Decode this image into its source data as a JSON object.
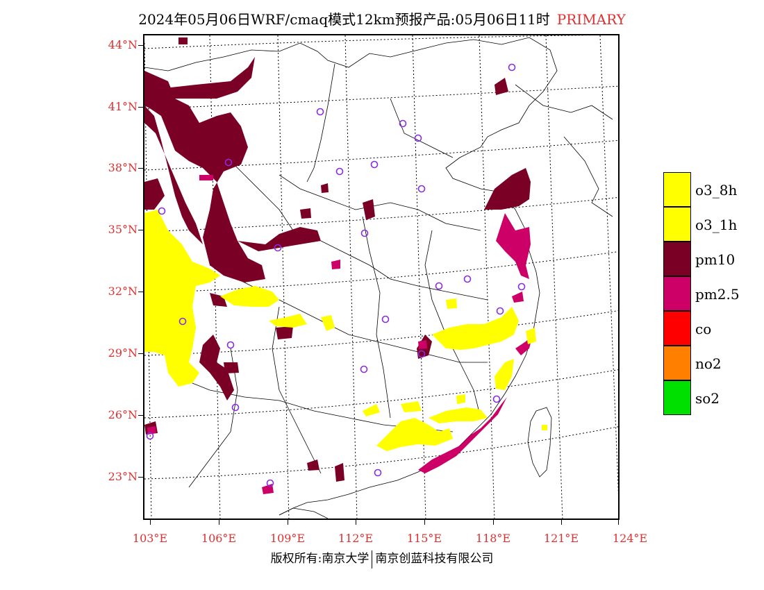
{
  "header": {
    "title": "2024年05月06日WRF/cmaq模式12km预报产品:05月06日11时",
    "primary_label": "PRIMARY"
  },
  "axes": {
    "lat_labels": [
      "44°N",
      "41°N",
      "38°N",
      "35°N",
      "32°N",
      "29°N",
      "26°N",
      "23°N"
    ],
    "lon_labels": [
      "103°E",
      "106°E",
      "109°E",
      "112°E",
      "115°E",
      "118°E",
      "121°E",
      "124°E"
    ]
  },
  "legend": {
    "items": [
      {
        "label": "o3_8h",
        "color": "#ffff00"
      },
      {
        "label": "o3_1h",
        "color": "#ffff00"
      },
      {
        "label": "pm10",
        "color": "#7a0026"
      },
      {
        "label": "pm2.5",
        "color": "#cc0066"
      },
      {
        "label": "co",
        "color": "#ff0000"
      },
      {
        "label": "no2",
        "color": "#ff7f00"
      },
      {
        "label": "so2",
        "color": "#00e000"
      }
    ]
  },
  "footer": {
    "left": "版权所有:南京大学",
    "right": "南京创蓝科技有限公司"
  },
  "colors": {
    "o3": "#ffff00",
    "pm10": "#7a0026",
    "pm25": "#cc0066",
    "station_marker": "#8a2be2",
    "axis_label": "#e03030"
  }
}
